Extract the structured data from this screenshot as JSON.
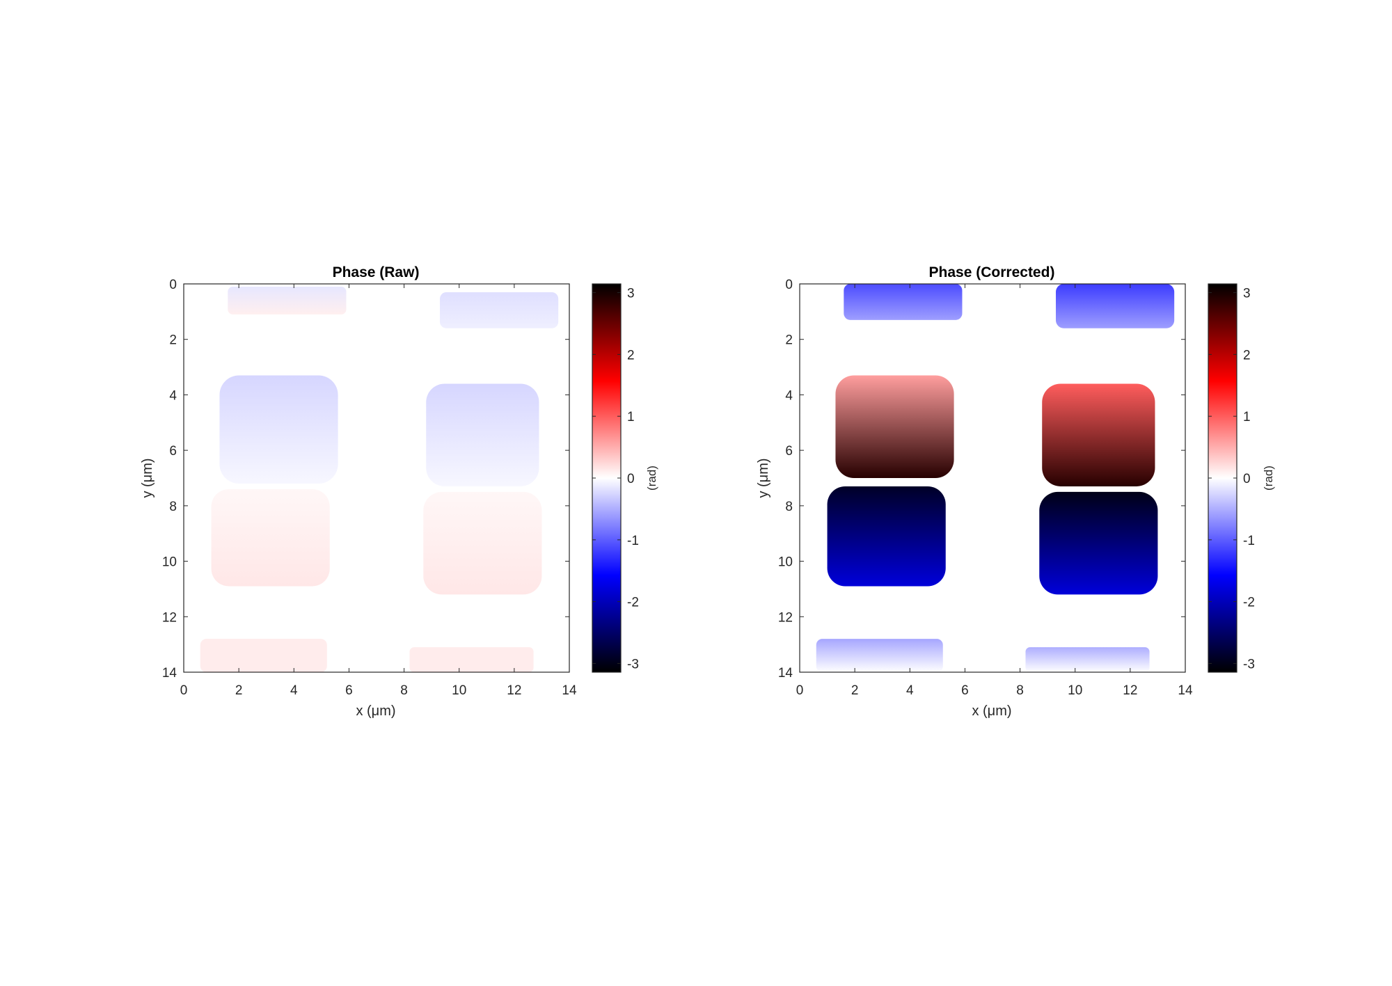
{
  "chart_data": [
    {
      "type": "heatmap",
      "title": "Phase (Raw)",
      "xlabel": "x (μm)",
      "ylabel": "y (μm)",
      "xlim": [
        0,
        14
      ],
      "ylim": [
        0,
        14
      ],
      "y_direction": "reversed",
      "x_ticks": [
        "0",
        "2",
        "4",
        "6",
        "8",
        "10",
        "12",
        "14"
      ],
      "y_ticks": [
        "0",
        "2",
        "4",
        "6",
        "8",
        "10",
        "12",
        "14"
      ],
      "colorbar": {
        "label": "(rad)",
        "range": [
          -3.1416,
          3.1416
        ],
        "ticks": [
          "3",
          "2",
          "1",
          "0",
          "-1",
          "-2",
          "-3"
        ],
        "colormap": [
          "#000000",
          "#0000ff",
          "#ffffff",
          "#ff0000",
          "#000000"
        ]
      },
      "regions": [
        {
          "x": [
            1.6,
            5.9
          ],
          "y": [
            0.1,
            1.1
          ],
          "top": -0.15,
          "bottom": 0.1
        },
        {
          "x": [
            9.3,
            13.6
          ],
          "y": [
            0.3,
            1.6
          ],
          "top": -0.2,
          "bottom": -0.1
        },
        {
          "x": [
            1.3,
            5.6
          ],
          "y": [
            3.3,
            7.2
          ],
          "top": -0.25,
          "bottom": -0.05
        },
        {
          "x": [
            8.8,
            12.9
          ],
          "y": [
            3.6,
            7.3
          ],
          "top": -0.25,
          "bottom": -0.05
        },
        {
          "x": [
            1.0,
            5.3
          ],
          "y": [
            7.4,
            10.9
          ],
          "top": 0.05,
          "bottom": 0.15
        },
        {
          "x": [
            8.7,
            13.0
          ],
          "y": [
            7.5,
            11.2
          ],
          "top": 0.05,
          "bottom": 0.15
        },
        {
          "x": [
            0.6,
            5.2
          ],
          "y": [
            12.8,
            14.0
          ],
          "top": 0.12,
          "bottom": 0.12
        },
        {
          "x": [
            8.2,
            12.7
          ],
          "y": [
            13.1,
            14.0
          ],
          "top": 0.12,
          "bottom": 0.12
        }
      ]
    },
    {
      "type": "heatmap",
      "title": "Phase (Corrected)",
      "xlabel": "x (μm)",
      "ylabel": "y (μm)",
      "xlim": [
        0,
        14
      ],
      "ylim": [
        0,
        14
      ],
      "y_direction": "reversed",
      "x_ticks": [
        "0",
        "2",
        "4",
        "6",
        "8",
        "10",
        "12",
        "14"
      ],
      "y_ticks": [
        "0",
        "2",
        "4",
        "6",
        "8",
        "10",
        "12",
        "14"
      ],
      "colorbar": {
        "label": "(rad)",
        "range": [
          -3.1416,
          3.1416
        ],
        "ticks": [
          "3",
          "2",
          "1",
          "0",
          "-1",
          "-2",
          "-3"
        ],
        "colormap": [
          "#000000",
          "#0000ff",
          "#ffffff",
          "#ff0000",
          "#000000"
        ]
      },
      "regions": [
        {
          "x": [
            1.6,
            5.9
          ],
          "y": [
            0.0,
            1.3
          ],
          "top": -1.1,
          "bottom": -0.6
        },
        {
          "x": [
            9.3,
            13.6
          ],
          "y": [
            0.0,
            1.6
          ],
          "top": -1.2,
          "bottom": -0.6
        },
        {
          "x": [
            1.3,
            5.6
          ],
          "y": [
            3.3,
            7.0
          ],
          "top": 0.6,
          "bottom": 2.9
        },
        {
          "x": [
            8.8,
            12.9
          ],
          "y": [
            3.6,
            7.3
          ],
          "top": 1.0,
          "bottom": 2.9
        },
        {
          "x": [
            1.0,
            5.3
          ],
          "y": [
            7.3,
            10.9
          ],
          "top": -2.9,
          "bottom": -1.8
        },
        {
          "x": [
            8.7,
            13.0
          ],
          "y": [
            7.5,
            11.2
          ],
          "top": -3.0,
          "bottom": -1.8
        },
        {
          "x": [
            0.6,
            5.2
          ],
          "y": [
            12.8,
            14.0
          ],
          "top": -0.55,
          "bottom": 0.0
        },
        {
          "x": [
            8.2,
            12.7
          ],
          "y": [
            13.1,
            14.0
          ],
          "top": -0.5,
          "bottom": 0.0
        }
      ]
    }
  ]
}
